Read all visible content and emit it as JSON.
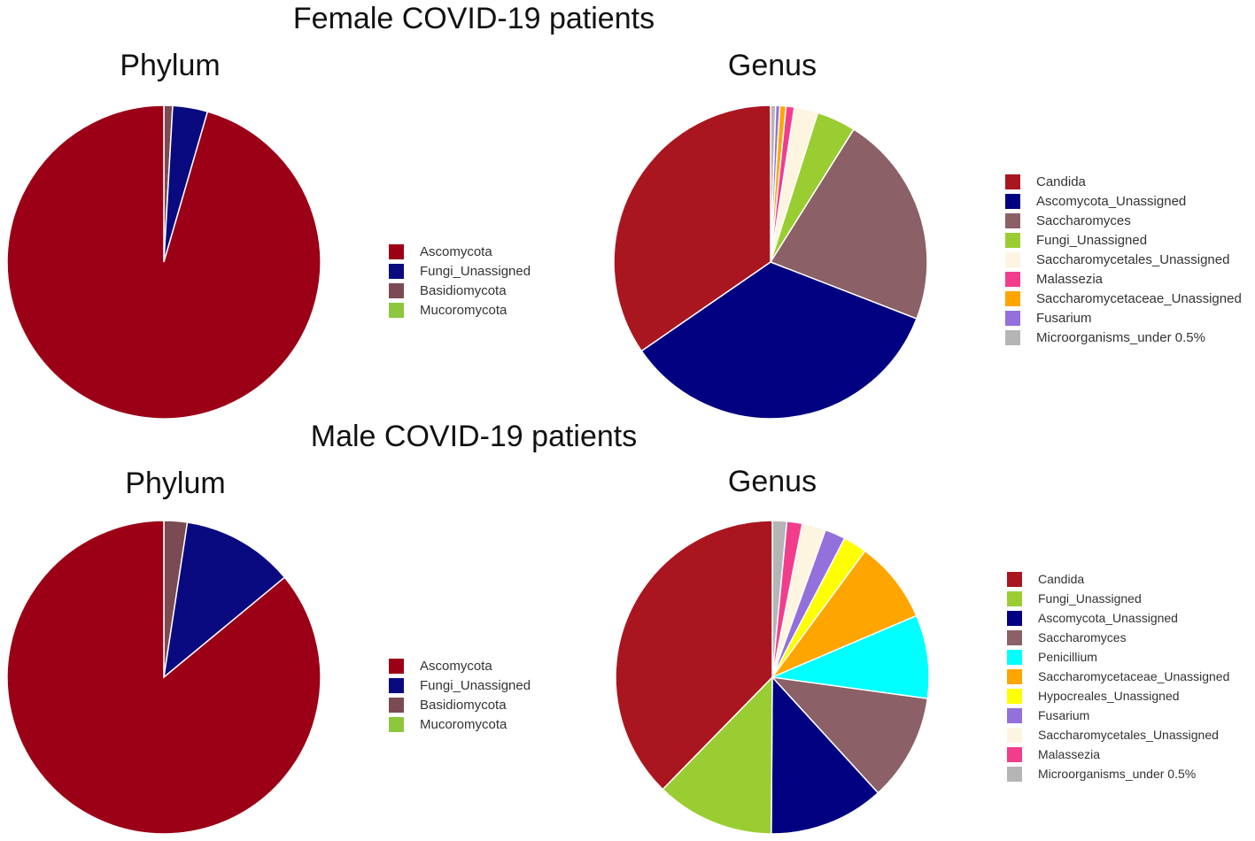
{
  "sections": {
    "female_title": "Female COVID-19 patients",
    "male_title": "Male COVID-19 patients"
  },
  "chart_data": [
    {
      "type": "pie",
      "title": "Phylum",
      "group": "Female COVID-19 patients",
      "categories": [
        "Ascomycota",
        "Fungi_Unassigned",
        "Basidiomycota",
        "Mucoromycota"
      ],
      "values": [
        95.5,
        3.6,
        0.9,
        0.0
      ],
      "colors": [
        "#9b0016",
        "#0a0a80",
        "#7a4b52",
        "#8dc63f"
      ]
    },
    {
      "type": "pie",
      "title": "Genus",
      "group": "Female COVID-19 patients",
      "categories": [
        "Candida",
        "Ascomycota_Unassigned",
        "Saccharomyces",
        "Fungi_Unassigned",
        "Saccharomycetales_Unassigned",
        "Malassezia",
        "Saccharomycetaceae_Unassigned",
        "Fusarium",
        "Microorganisms_under 0.5%"
      ],
      "values": [
        32.6,
        32.5,
        20.7,
        3.8,
        2.3,
        0.8,
        0.6,
        0.4,
        0.5
      ],
      "colors": [
        "#aa1620",
        "#000080",
        "#8b6066",
        "#9acd32",
        "#fdf5e0",
        "#f23d8c",
        "#ffa500",
        "#9370db",
        "#b5b5b5"
      ]
    },
    {
      "type": "pie",
      "title": "Phylum",
      "group": "Male COVID-19 patients",
      "categories": [
        "Ascomycota",
        "Fungi_Unassigned",
        "Basidiomycota",
        "Mucoromycota"
      ],
      "values": [
        86.0,
        11.6,
        2.4,
        0.0
      ],
      "colors": [
        "#9b0016",
        "#0a0a80",
        "#7a4b52",
        "#8dc63f"
      ]
    },
    {
      "type": "pie",
      "title": "Genus",
      "group": "Male COVID-19 patients",
      "categories": [
        "Candida",
        "Fungi_Unassigned",
        "Ascomycota_Unassigned",
        "Saccharomyces",
        "Penicillium",
        "Saccharomycetaceae_Unassigned",
        "Hypocreales_Unassigned",
        "Fusarium",
        "Saccharomycetales_Unassigned",
        "Malassezia",
        "Microorganisms_under 0.5%"
      ],
      "values": [
        35.5,
        11.5,
        11.2,
        10.4,
        8.1,
        8.0,
        2.3,
        2.0,
        2.3,
        1.5,
        1.4
      ],
      "colors": [
        "#aa1620",
        "#9acd32",
        "#000080",
        "#8b6066",
        "#00ffff",
        "#ffa500",
        "#ffff00",
        "#9370db",
        "#fdf5e0",
        "#f23d8c",
        "#b5b5b5"
      ]
    }
  ]
}
